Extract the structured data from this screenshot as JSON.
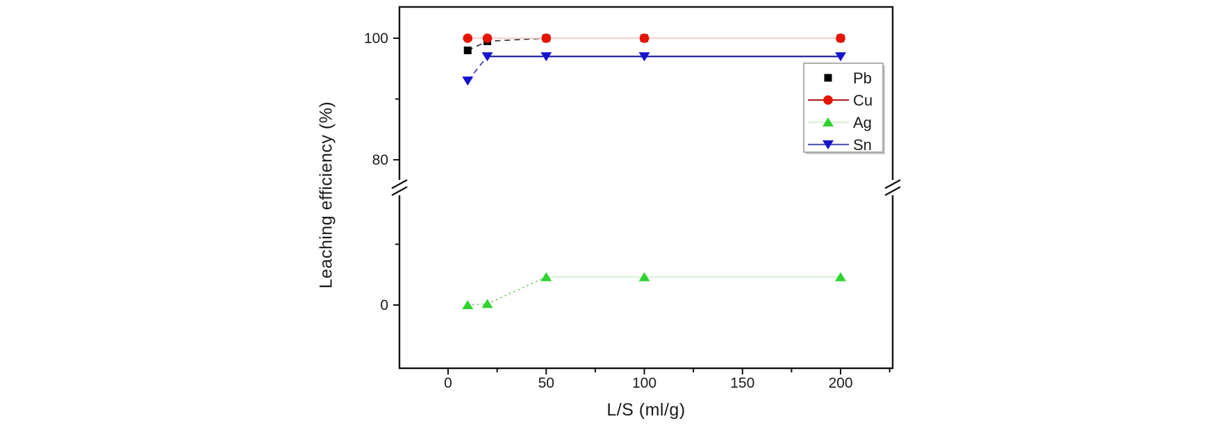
{
  "chart_data": {
    "type": "line",
    "title": "",
    "xlabel": "L/S (ml/g)",
    "ylabel": "Leaching efficiency (%)",
    "x": [
      10,
      20,
      50,
      100,
      200
    ],
    "series": [
      {
        "name": "Pb",
        "marker": "square",
        "marker_color": "#000000",
        "legend_line_color": null,
        "values": [
          98,
          99.5,
          100,
          100,
          100
        ],
        "line_runs": [
          {
            "from": 0,
            "to": 2,
            "style": "dashed",
            "color": "#2b2b2b",
            "width": 1.6
          }
        ]
      },
      {
        "name": "Cu",
        "marker": "circle",
        "marker_color": "#e51400",
        "legend_line_color": "#b22222",
        "values": [
          100,
          100,
          100,
          100,
          100
        ],
        "line_runs": [
          {
            "from": 0,
            "to": 4,
            "style": "solid",
            "color": "#f3c6c6",
            "width": 1.8
          }
        ]
      },
      {
        "name": "Ag",
        "marker": "triangle-up",
        "marker_color": "#2fd32f",
        "legend_line_color": "#d9f2d9",
        "values": [
          0,
          0.2,
          4.6,
          4.6,
          4.6
        ],
        "line_runs": [
          {
            "from": 0,
            "to": 2,
            "style": "dotted",
            "color": "#4ec94e",
            "width": 1.8
          },
          {
            "from": 2,
            "to": 4,
            "style": "solid",
            "color": "#c9eec9",
            "width": 1.8
          }
        ]
      },
      {
        "name": "Sn",
        "marker": "triangle-down",
        "marker_color": "#1414cd",
        "legend_line_color": "#5a5ab4",
        "values": [
          93,
          97,
          97,
          97,
          97
        ],
        "line_runs": [
          {
            "from": 0,
            "to": 1,
            "style": "dashed",
            "color": "#4040b8",
            "width": 1.8
          },
          {
            "from": 1,
            "to": 4,
            "style": "solid",
            "color": "#1f1f9e",
            "width": 2.2
          }
        ]
      }
    ],
    "draw_order": [
      2,
      3,
      0,
      1
    ],
    "x_ticks_major": [
      {
        "value": 0,
        "label": "0"
      },
      {
        "value": 50,
        "label": "50"
      },
      {
        "value": 100,
        "label": "100"
      },
      {
        "value": 150,
        "label": "150"
      },
      {
        "value": 200,
        "label": "200"
      }
    ],
    "x_ticks_minor": [
      25,
      75,
      125,
      175,
      225
    ],
    "y_ticks": [
      {
        "value": 100,
        "label": "100",
        "panel": "top",
        "major": true
      },
      {
        "value": 90,
        "label": "",
        "panel": "top",
        "major": false
      },
      {
        "value": 80,
        "label": "80",
        "panel": "top",
        "major": true
      },
      {
        "value": 10,
        "label": "",
        "panel": "bottom",
        "major": false
      },
      {
        "value": 0,
        "label": "0",
        "panel": "bottom",
        "major": true
      }
    ],
    "y_axis_break": {
      "bottom_panel_max": 20,
      "top_panel_min": 76
    },
    "axis_color": "#111111",
    "text_color": "#1a1a1a",
    "grid": false,
    "legend": {
      "position": "upper-right",
      "entries": [
        "Pb",
        "Cu",
        "Ag",
        "Sn"
      ],
      "border_color": "#9a9a9a",
      "background": "#ffffff"
    }
  }
}
